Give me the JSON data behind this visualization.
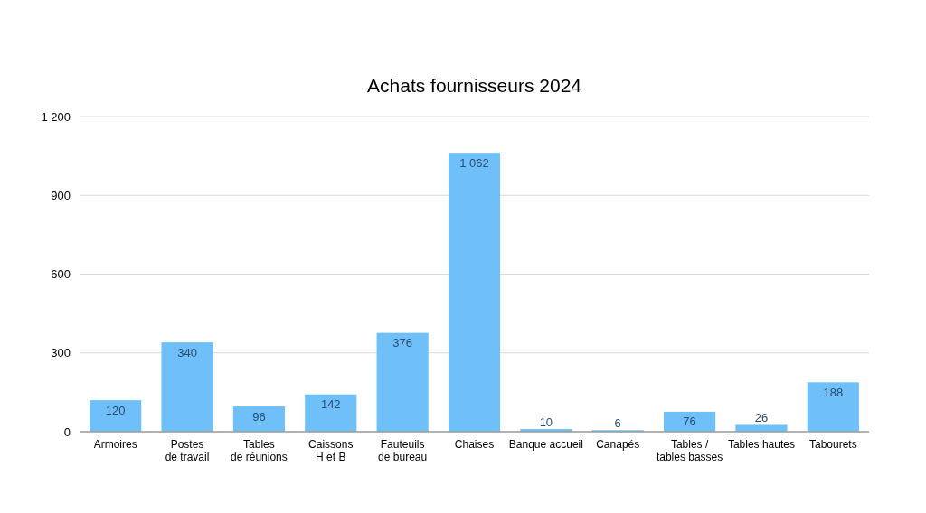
{
  "chart_data": {
    "type": "bar",
    "title": "Achats fournisseurs 2024",
    "categories": [
      "Armoires",
      "Postes\nde travail",
      "Tables\nde réunions",
      "Caissons\nH et B",
      "Fauteuils\nde bureau",
      "Chaises",
      "Banque accueil",
      "Canapés",
      "Tables /\ntables basses",
      "Tables hautes",
      "Tabourets"
    ],
    "values": [
      120,
      340,
      96,
      142,
      376,
      1062,
      10,
      6,
      76,
      26,
      188
    ],
    "value_labels": [
      "120",
      "340",
      "96",
      "142",
      "376",
      "1 062",
      "10",
      "6",
      "76",
      "26",
      "188"
    ],
    "color": "#6fbff8",
    "ylim": [
      0,
      1200
    ],
    "yticks": [
      0,
      300,
      600,
      900,
      {
        "value": 1200,
        "label": "1 200"
      }
    ],
    "grid": "y"
  }
}
